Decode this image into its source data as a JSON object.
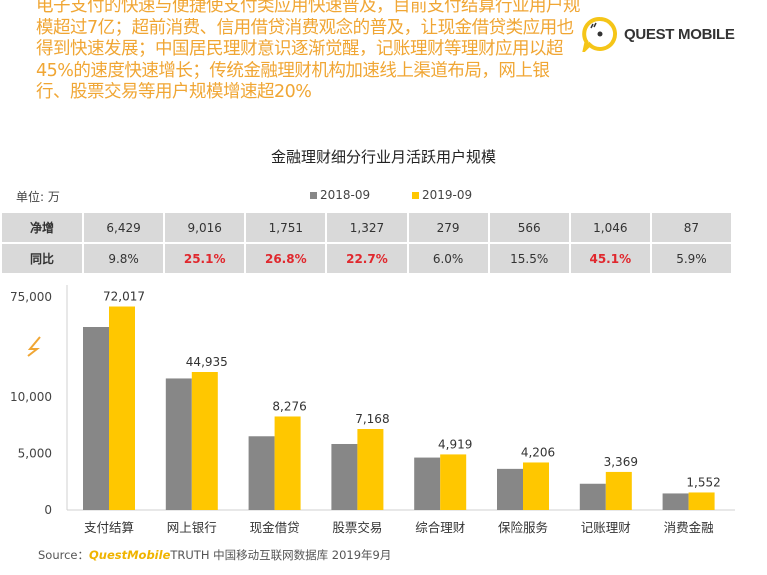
{
  "intro_text": "电子支付的快速与便捷使支付类应用快速普及，目前支付结算行业用户规模超过7亿；超前消费、信用借贷消费观念的普及，让现金借贷类应用也得到快速发展；中国居民理财意识逐渐觉醒，记账理财等理财应用以超45%的速度快速增长；传统金融理财机构加速线上渠道布局，网上银行、股票交易等用户规模增速超20%",
  "logo": {
    "text": "QUEST MOBILE",
    "watermark": "QUEST MOBILE"
  },
  "source": {
    "prefix": "Source：",
    "brand": "QuestMobile",
    "rest": "TRUTH 中国移动互联网数据库 2019年9月"
  },
  "colors": {
    "series_2018": "#878787",
    "series_2019": "#ffc700",
    "highlight": "#e0282e",
    "intro": "#f0a634"
  },
  "chart_data": {
    "type": "bar",
    "title": "金融理财细分行业月活跃用户规模",
    "unit_label": "单位: 万",
    "categories": [
      "支付结算",
      "网上银行",
      "现金借贷",
      "股票交易",
      "综合理财",
      "保险服务",
      "记账理财",
      "消费金融"
    ],
    "series": [
      {
        "name": "2018-09",
        "values": [
          65588,
          35919,
          6525,
          5841,
          4640,
          3640,
          2323,
          1465
        ]
      },
      {
        "name": "2019-09",
        "values": [
          72017,
          44935,
          8276,
          7168,
          4919,
          4206,
          3369,
          1552
        ]
      }
    ],
    "data_labels": [
      "72,017",
      "44,935",
      "8,276",
      "7,168",
      "4,919",
      "4,206",
      "3,369",
      "1,552"
    ],
    "y_ticks": [
      "0",
      "5,000",
      "10,000",
      "75,000"
    ],
    "axis_break": "between 10,000 and 75,000",
    "legend_position": "top",
    "grid": false,
    "table": {
      "rows": [
        {
          "label": "净增",
          "values": [
            "6,429",
            "9,016",
            "1,751",
            "1,327",
            "279",
            "566",
            "1,046",
            "87"
          ],
          "highlight": [
            false,
            false,
            false,
            false,
            false,
            false,
            false,
            false
          ]
        },
        {
          "label": "同比",
          "values": [
            "9.8%",
            "25.1%",
            "26.8%",
            "22.7%",
            "6.0%",
            "15.5%",
            "45.1%",
            "5.9%"
          ],
          "highlight": [
            false,
            true,
            true,
            true,
            false,
            false,
            true,
            false
          ]
        }
      ]
    }
  }
}
